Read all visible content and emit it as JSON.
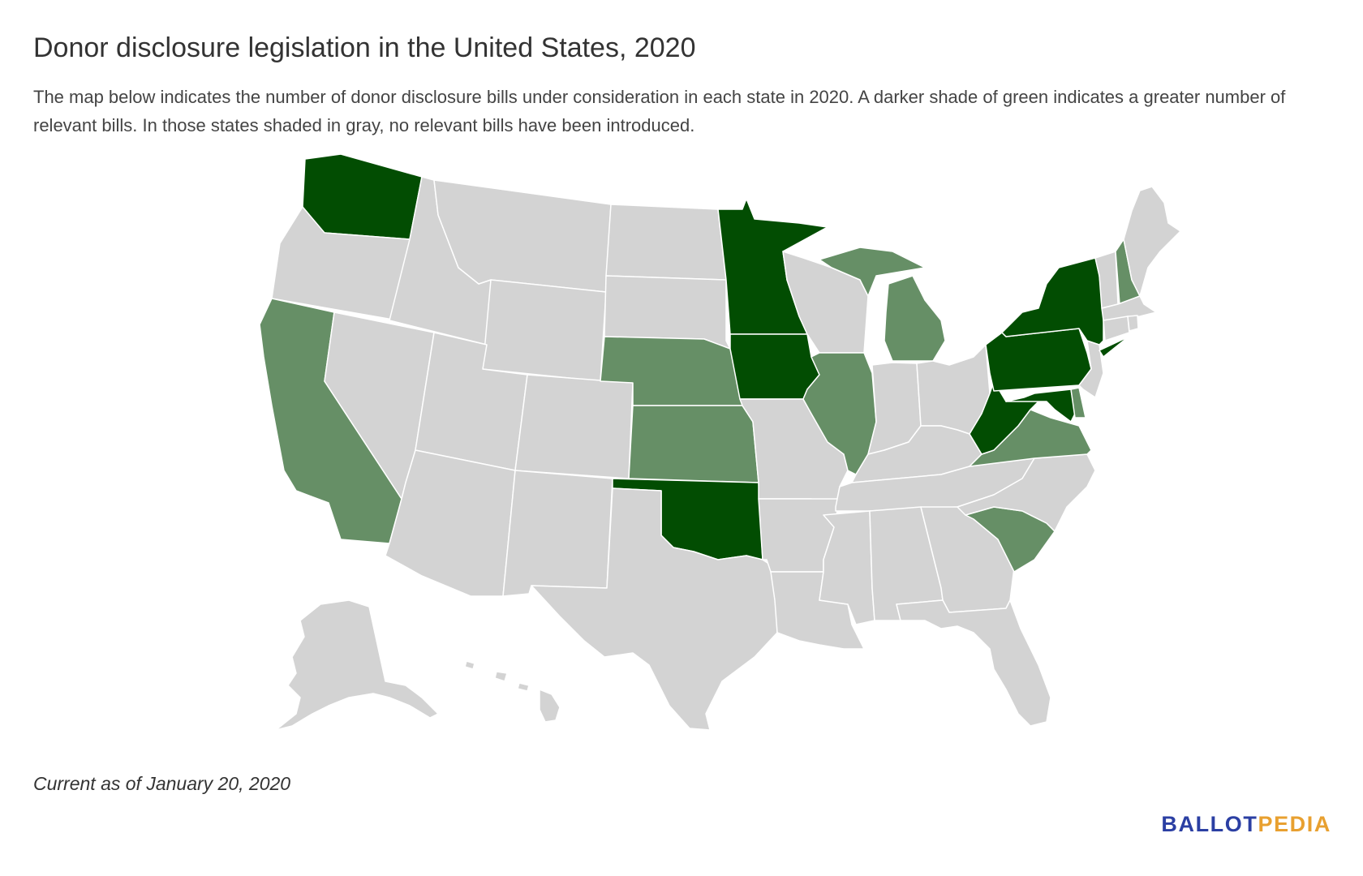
{
  "title": "Donor disclosure legislation in the United States, 2020",
  "description": "The map below indicates the number of donor disclosure bills under consideration in each state in 2020. A darker shade of green indicates a greater number of relevant bills. In those states shaded in gray, no relevant bills have been introduced.",
  "footnote": "Current as of January 20, 2020",
  "logo": {
    "part1": "BALLOT",
    "part2": "PEDIA"
  },
  "colors": {
    "none": "#d3d3d3",
    "light": "#668f66",
    "dark": "#024d02",
    "border": "#ffffff",
    "logo_blue": "#2b3fa3",
    "logo_orange": "#e8a030"
  },
  "map_data": {
    "type": "choropleth",
    "metric": "number of donor disclosure bills under consideration",
    "shading": {
      "dark": "greater number of relevant bills",
      "light": "fewer relevant bills",
      "gray": "no relevant bills introduced"
    },
    "dark_states": [
      "Washington",
      "Minnesota",
      "Iowa",
      "Oklahoma",
      "New York",
      "Pennsylvania",
      "West Virginia",
      "Maryland"
    ],
    "light_states": [
      "California",
      "Nebraska",
      "Kansas",
      "Illinois",
      "Michigan",
      "Virginia",
      "South Carolina",
      "New Hampshire",
      "Delaware"
    ]
  }
}
